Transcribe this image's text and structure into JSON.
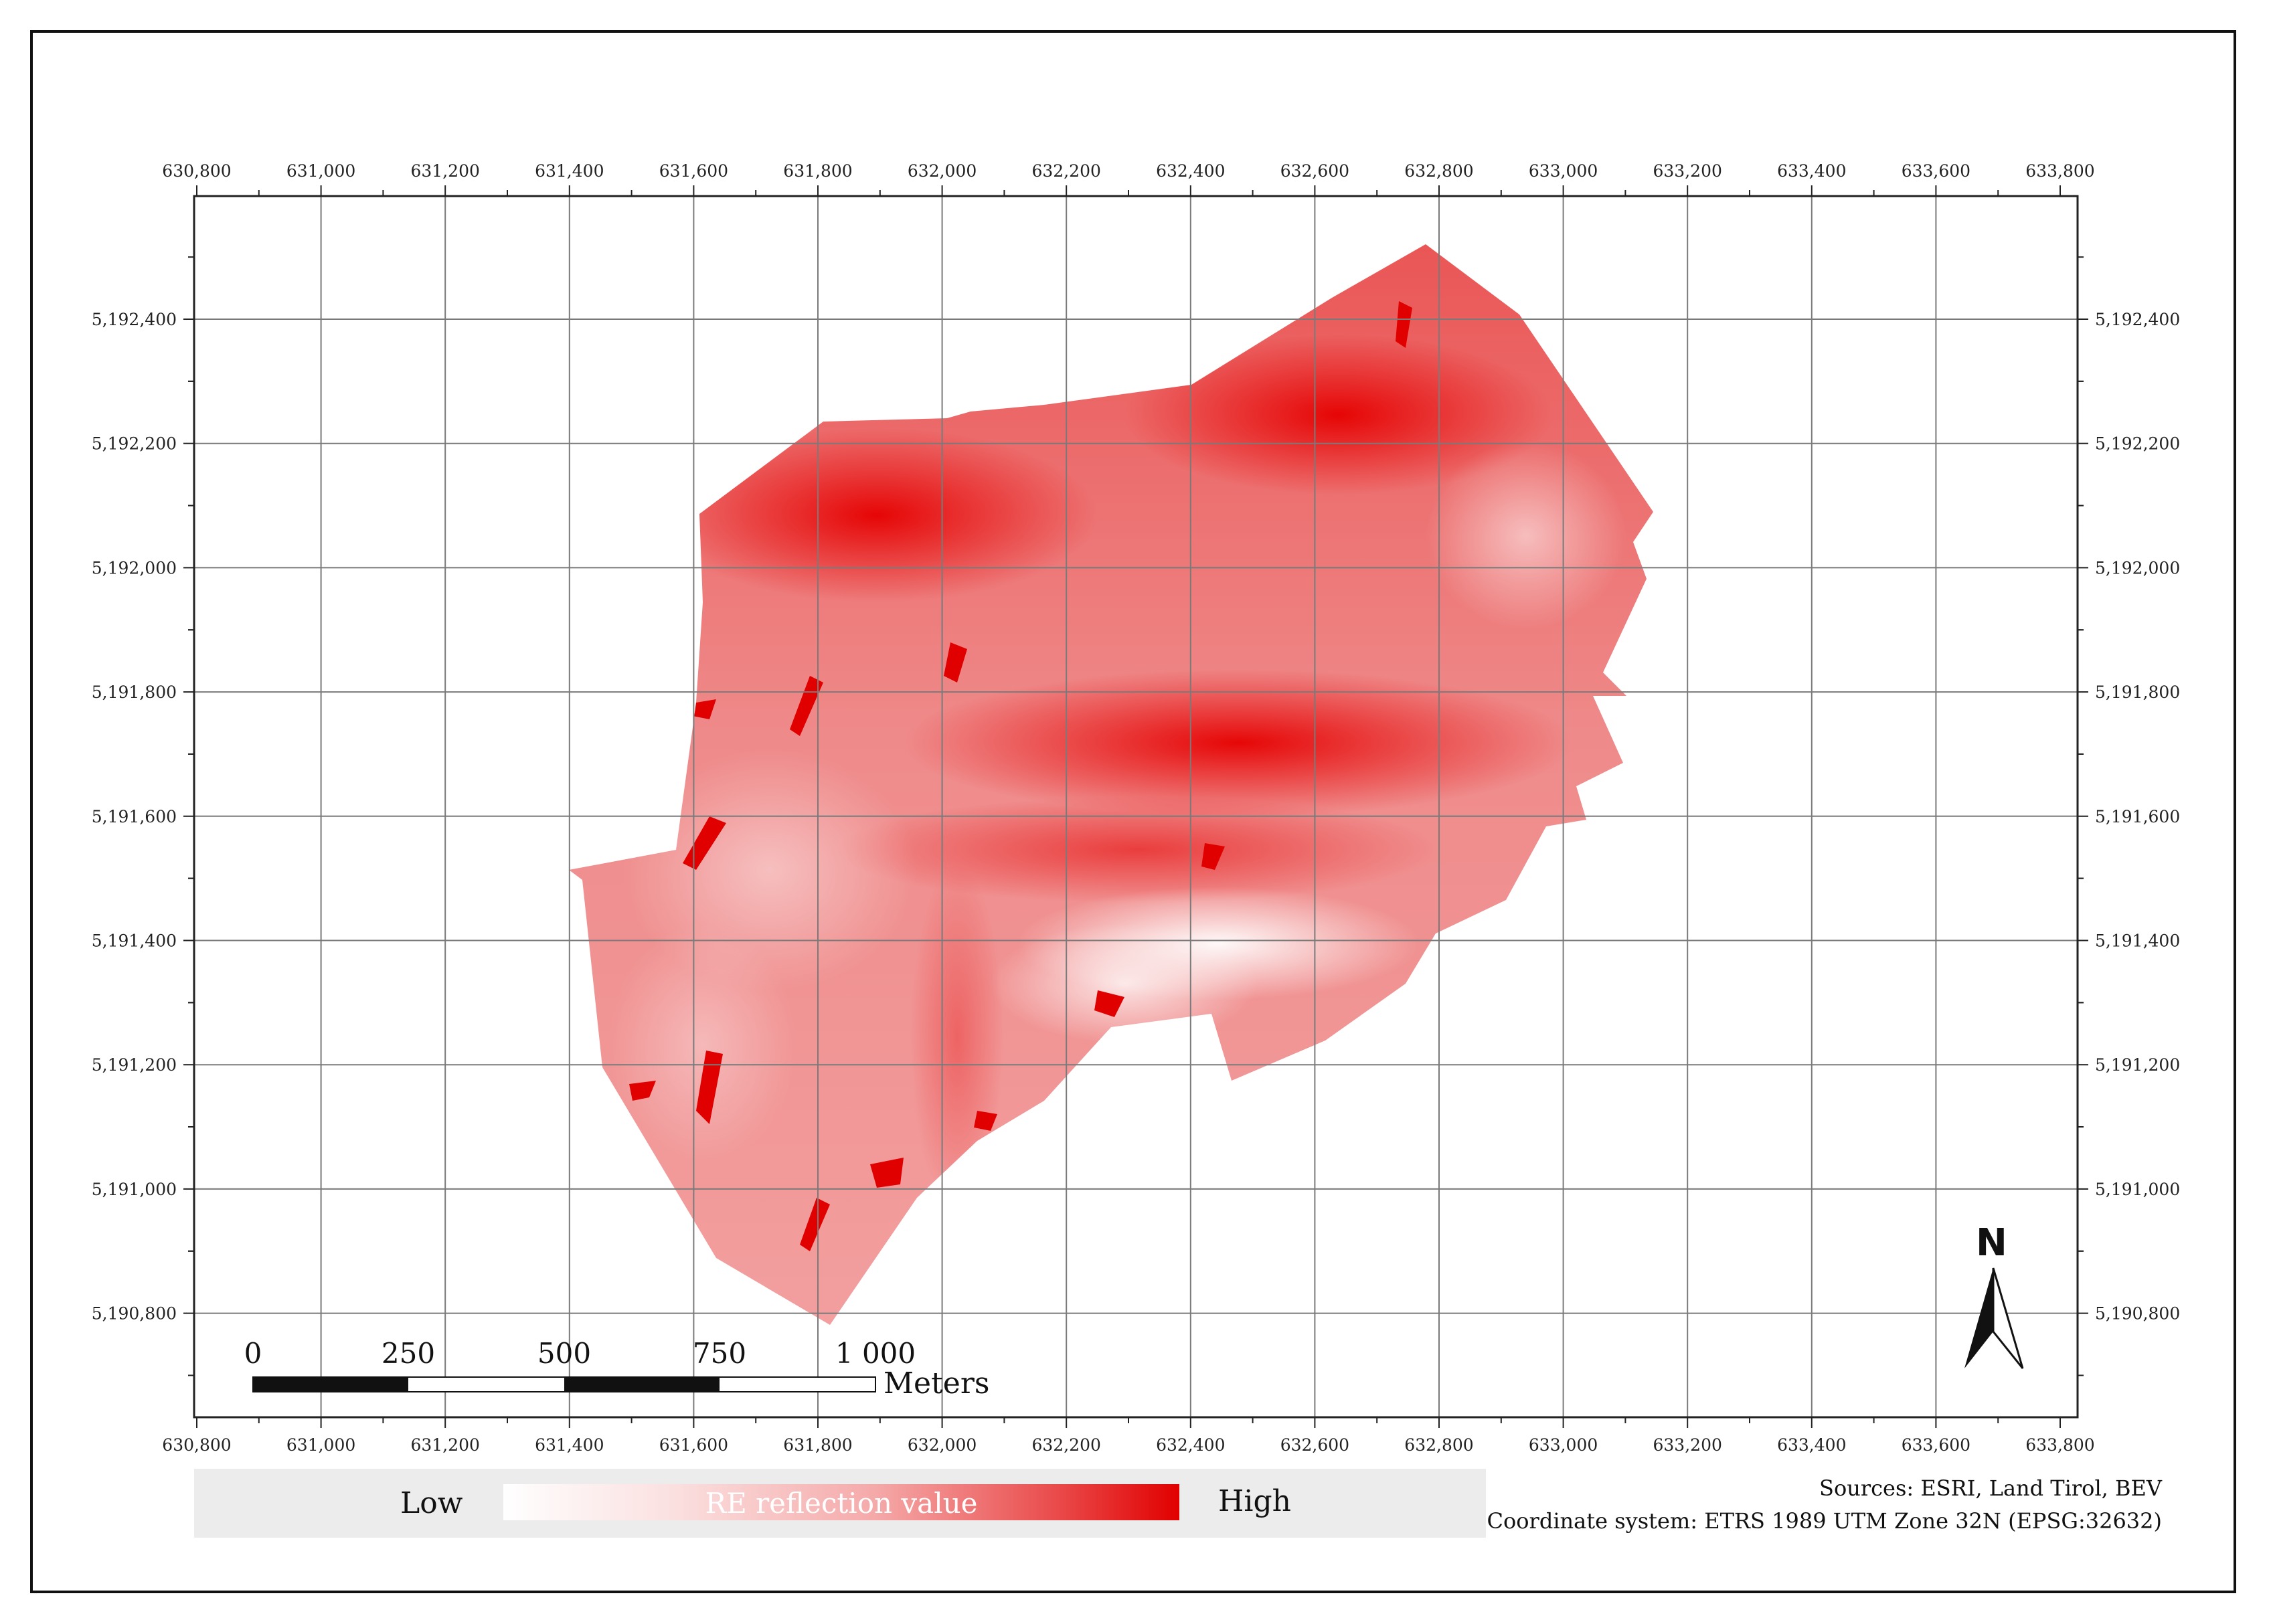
{
  "map": {
    "x_ticks": [
      "630,800",
      "631,000",
      "631,200",
      "631,400",
      "631,600",
      "631,800",
      "632,000",
      "632,200",
      "632,400",
      "632,600",
      "632,800",
      "633,000",
      "633,200",
      "633,400",
      "633,600",
      "633,800"
    ],
    "y_ticks": [
      "5,192,400",
      "5,192,200",
      "5,192,000",
      "5,191,800",
      "5,191,600",
      "5,191,400",
      "5,191,200",
      "5,191,000",
      "5,190,800"
    ],
    "grid": true,
    "colors": {
      "high": "#e10000",
      "low": "#ffffff",
      "grid": "#7a7a7a"
    }
  },
  "scale_bar": {
    "labels": [
      "0",
      "250",
      "500",
      "750",
      "1 000"
    ],
    "unit": "Meters"
  },
  "north_arrow": {
    "label": "N",
    "icon": "north-arrow-icon"
  },
  "legend": {
    "low": "Low",
    "high": "High",
    "title": "RE reflection value"
  },
  "credits": {
    "sources": "Sources: ESRI, Land Tirol, BEV",
    "coordinate_system": "Coordinate system: ETRS 1989 UTM Zone 32N (EPSG:32632)"
  }
}
